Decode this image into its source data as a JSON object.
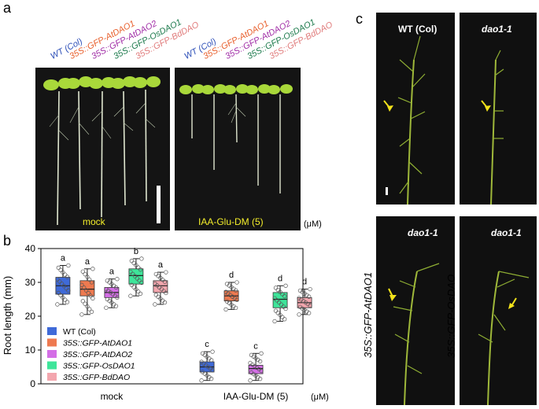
{
  "panel_a": {
    "letter": "a",
    "genotypes": [
      {
        "label": "WT (Col)",
        "color": "#2e50b8"
      },
      {
        "label": "35S::GFP-AtDAO1",
        "color": "#e85f2c"
      },
      {
        "label": "35S::GFP-AtDAO2",
        "color": "#a02ca6"
      },
      {
        "label": "35S::GFP-OsDAO1",
        "color": "#1c7a4c"
      },
      {
        "label": "35S::GFP-BdDAO",
        "color": "#e07b7b"
      }
    ],
    "left_condition": "mock",
    "right_condition": "IAA-Glu-DM (5)",
    "unit": "(μM)"
  },
  "panel_b": {
    "letter": "b",
    "ylabel": "Root length (mm)",
    "groups": [
      "mock",
      "IAA-Glu-DM (5)"
    ],
    "unit": "(μM)"
  },
  "panel_c": {
    "letter": "c",
    "top_left": "WT (Col)",
    "top_right": "dao1-1",
    "bottom_left": "dao1-1",
    "bottom_right": "dao1-1",
    "side_left": "35S::GFP-AtDAO1",
    "side_right": "35S::GFP-OsDAO"
  },
  "chart_data": {
    "type": "box",
    "ylabel": "Root length (mm)",
    "ylim": [
      0,
      40
    ],
    "yticks": [
      0,
      10,
      20,
      30,
      40
    ],
    "categories": [
      "mock",
      "IAA-Glu-DM (5)"
    ],
    "legend": [
      {
        "label": "WT (Col)",
        "color": "#3f6ad8"
      },
      {
        "label": "35S::GFP-AtDAO1",
        "color": "#ee7a50"
      },
      {
        "label": "35S::GFP-AtDAO2",
        "color": "#d46ee6"
      },
      {
        "label": "35S::GFP-OsDAO1",
        "color": "#3ee59a"
      },
      {
        "label": "35S::GFP-BdDAO",
        "color": "#f3a6ae"
      }
    ],
    "series": [
      {
        "name": "WT (Col)",
        "color": "#3f6ad8",
        "boxes": [
          {
            "group": "mock",
            "whisker_low": 23.5,
            "q1": 26.5,
            "median": 29,
            "q3": 31.5,
            "whisker_high": 35,
            "letter": "a"
          },
          {
            "group": "IAA-Glu-DM (5)",
            "whisker_low": 1,
            "q1": 3.5,
            "median": 5,
            "q3": 6.5,
            "whisker_high": 9.5,
            "letter": "c"
          }
        ]
      },
      {
        "name": "35S::GFP-AtDAO1",
        "color": "#ee7a50",
        "boxes": [
          {
            "group": "mock",
            "whisker_low": 20.5,
            "q1": 26,
            "median": 28,
            "q3": 30.5,
            "whisker_high": 34,
            "letter": "a"
          },
          {
            "group": "IAA-Glu-DM (5)",
            "whisker_low": 22,
            "q1": 24.5,
            "median": 26,
            "q3": 27.5,
            "whisker_high": 30,
            "letter": "d"
          }
        ]
      },
      {
        "name": "35S::GFP-AtDAO2",
        "color": "#d46ee6",
        "boxes": [
          {
            "group": "mock",
            "whisker_low": 22.5,
            "q1": 25.5,
            "median": 27,
            "q3": 28.5,
            "whisker_high": 31,
            "letter": "a"
          },
          {
            "group": "IAA-Glu-DM (5)",
            "whisker_low": 1,
            "q1": 3,
            "median": 4.5,
            "q3": 5.5,
            "whisker_high": 9,
            "letter": "c"
          }
        ]
      },
      {
        "name": "35S::GFP-OsDAO1",
        "color": "#3ee59a",
        "boxes": [
          {
            "group": "mock",
            "whisker_low": 26,
            "q1": 29.5,
            "median": 32,
            "q3": 34,
            "whisker_high": 37,
            "letter": "b"
          },
          {
            "group": "IAA-Glu-DM (5)",
            "whisker_low": 18.5,
            "q1": 22.5,
            "median": 25,
            "q3": 27,
            "whisker_high": 29,
            "letter": "d"
          }
        ]
      },
      {
        "name": "35S::GFP-BdDAO",
        "color": "#f3a6ae",
        "boxes": [
          {
            "group": "mock",
            "whisker_low": 23.5,
            "q1": 27,
            "median": 29,
            "q3": 30.5,
            "whisker_high": 33,
            "letter": "a"
          },
          {
            "group": "IAA-Glu-DM (5)",
            "whisker_low": 20.5,
            "q1": 22.5,
            "median": 24,
            "q3": 25.5,
            "whisker_high": 28,
            "letter": "d"
          }
        ]
      }
    ]
  }
}
